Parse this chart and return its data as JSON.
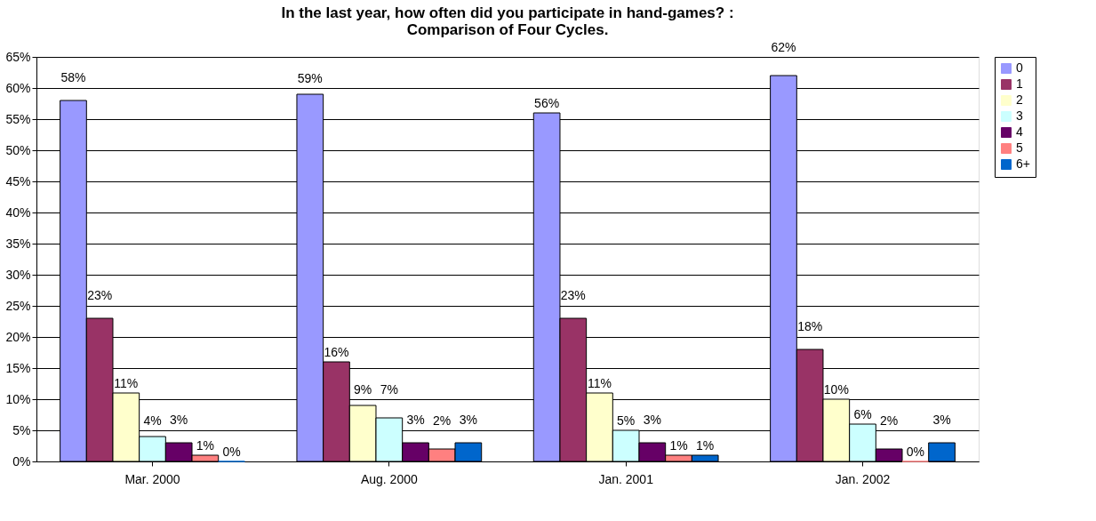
{
  "chart_data": {
    "type": "bar",
    "title": "In the last year, how often did you participate in hand-games? :\nComparison of Four Cycles.",
    "categories": [
      "Mar. 2000",
      "Aug. 2000",
      "Jan. 2001",
      "Jan. 2002"
    ],
    "series": [
      {
        "name": "0",
        "color": "#9999ff",
        "values": [
          58,
          59,
          56,
          62
        ],
        "value_labels": [
          "58%",
          "59%",
          "56%",
          "62%"
        ]
      },
      {
        "name": "1",
        "color": "#993366",
        "values": [
          23,
          16,
          23,
          18
        ],
        "value_labels": [
          "23%",
          "16%",
          "23%",
          "18%"
        ]
      },
      {
        "name": "2",
        "color": "#ffffcc",
        "values": [
          11,
          9,
          11,
          10
        ],
        "value_labels": [
          "11%",
          "9%",
          "11%",
          "10%"
        ]
      },
      {
        "name": "3",
        "color": "#ccffff",
        "values": [
          4,
          7,
          5,
          6
        ],
        "value_labels": [
          "4%",
          "7%",
          "5%",
          "6%"
        ]
      },
      {
        "name": "4",
        "color": "#660066",
        "values": [
          3,
          3,
          3,
          2
        ],
        "value_labels": [
          "3%",
          "3%",
          "3%",
          "2%"
        ]
      },
      {
        "name": "5",
        "color": "#ff8080",
        "values": [
          1,
          2,
          1,
          0
        ],
        "value_labels": [
          "1%",
          "2%",
          "1%",
          "0%"
        ]
      },
      {
        "name": "6+",
        "color": "#0066cc",
        "values": [
          0,
          3,
          1,
          3
        ],
        "value_labels": [
          "0%",
          "3%",
          "1%",
          "3%"
        ]
      }
    ],
    "ylim": [
      0,
      65
    ],
    "yticks": [
      {
        "value": 0,
        "label": "0%"
      },
      {
        "value": 5,
        "label": "5%"
      },
      {
        "value": 10,
        "label": "10%"
      },
      {
        "value": 15,
        "label": "15%"
      },
      {
        "value": 20,
        "label": "20%"
      },
      {
        "value": 25,
        "label": "25%"
      },
      {
        "value": 30,
        "label": "30%"
      },
      {
        "value": 35,
        "label": "35%"
      },
      {
        "value": 40,
        "label": "40%"
      },
      {
        "value": 45,
        "label": "45%"
      },
      {
        "value": 50,
        "label": "50%"
      },
      {
        "value": 55,
        "label": "55%"
      },
      {
        "value": 60,
        "label": "60%"
      },
      {
        "value": 65,
        "label": "65%"
      }
    ],
    "grid": "y",
    "legend": "right"
  }
}
